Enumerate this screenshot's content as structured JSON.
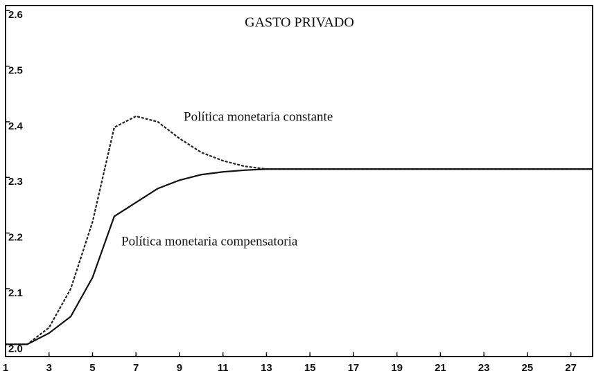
{
  "chart_data": {
    "type": "line",
    "title": "GASTO PRIVADO",
    "x": [
      1,
      2,
      3,
      4,
      5,
      6,
      7,
      8,
      9,
      10,
      11,
      12,
      13,
      14,
      15,
      16,
      17,
      18,
      19,
      20,
      21,
      22,
      23,
      24,
      25,
      26,
      27,
      28
    ],
    "series": [
      {
        "name": "Política monetaria constante",
        "color": "#222",
        "dash": true,
        "values": [
          2.0,
          2.0,
          2.03,
          2.1,
          2.22,
          2.39,
          2.41,
          2.4,
          2.37,
          2.345,
          2.33,
          2.32,
          2.315,
          2.315,
          2.315,
          2.315,
          2.315,
          2.315,
          2.315,
          2.315,
          2.315,
          2.315,
          2.315,
          2.315,
          2.315,
          2.315,
          2.315,
          2.315
        ]
      },
      {
        "name": "Política monetaria compensatoria",
        "color": "#111",
        "dash": false,
        "values": [
          2.0,
          2.0,
          2.02,
          2.05,
          2.12,
          2.23,
          2.255,
          2.28,
          2.295,
          2.305,
          2.31,
          2.313,
          2.315,
          2.315,
          2.315,
          2.315,
          2.315,
          2.315,
          2.315,
          2.315,
          2.315,
          2.315,
          2.315,
          2.315,
          2.315,
          2.315,
          2.315,
          2.315
        ]
      }
    ],
    "xlim": [
      1,
      28
    ],
    "xticks": [
      1,
      3,
      5,
      7,
      9,
      11,
      13,
      15,
      17,
      19,
      21,
      23,
      25,
      27
    ],
    "ylim": [
      1.978,
      2.609
    ],
    "yticks": [
      {
        "value": 2,
        "label": "2.0"
      },
      2.1,
      2.2,
      2.3,
      2.4,
      2.5,
      2.6
    ],
    "grid": false
  }
}
